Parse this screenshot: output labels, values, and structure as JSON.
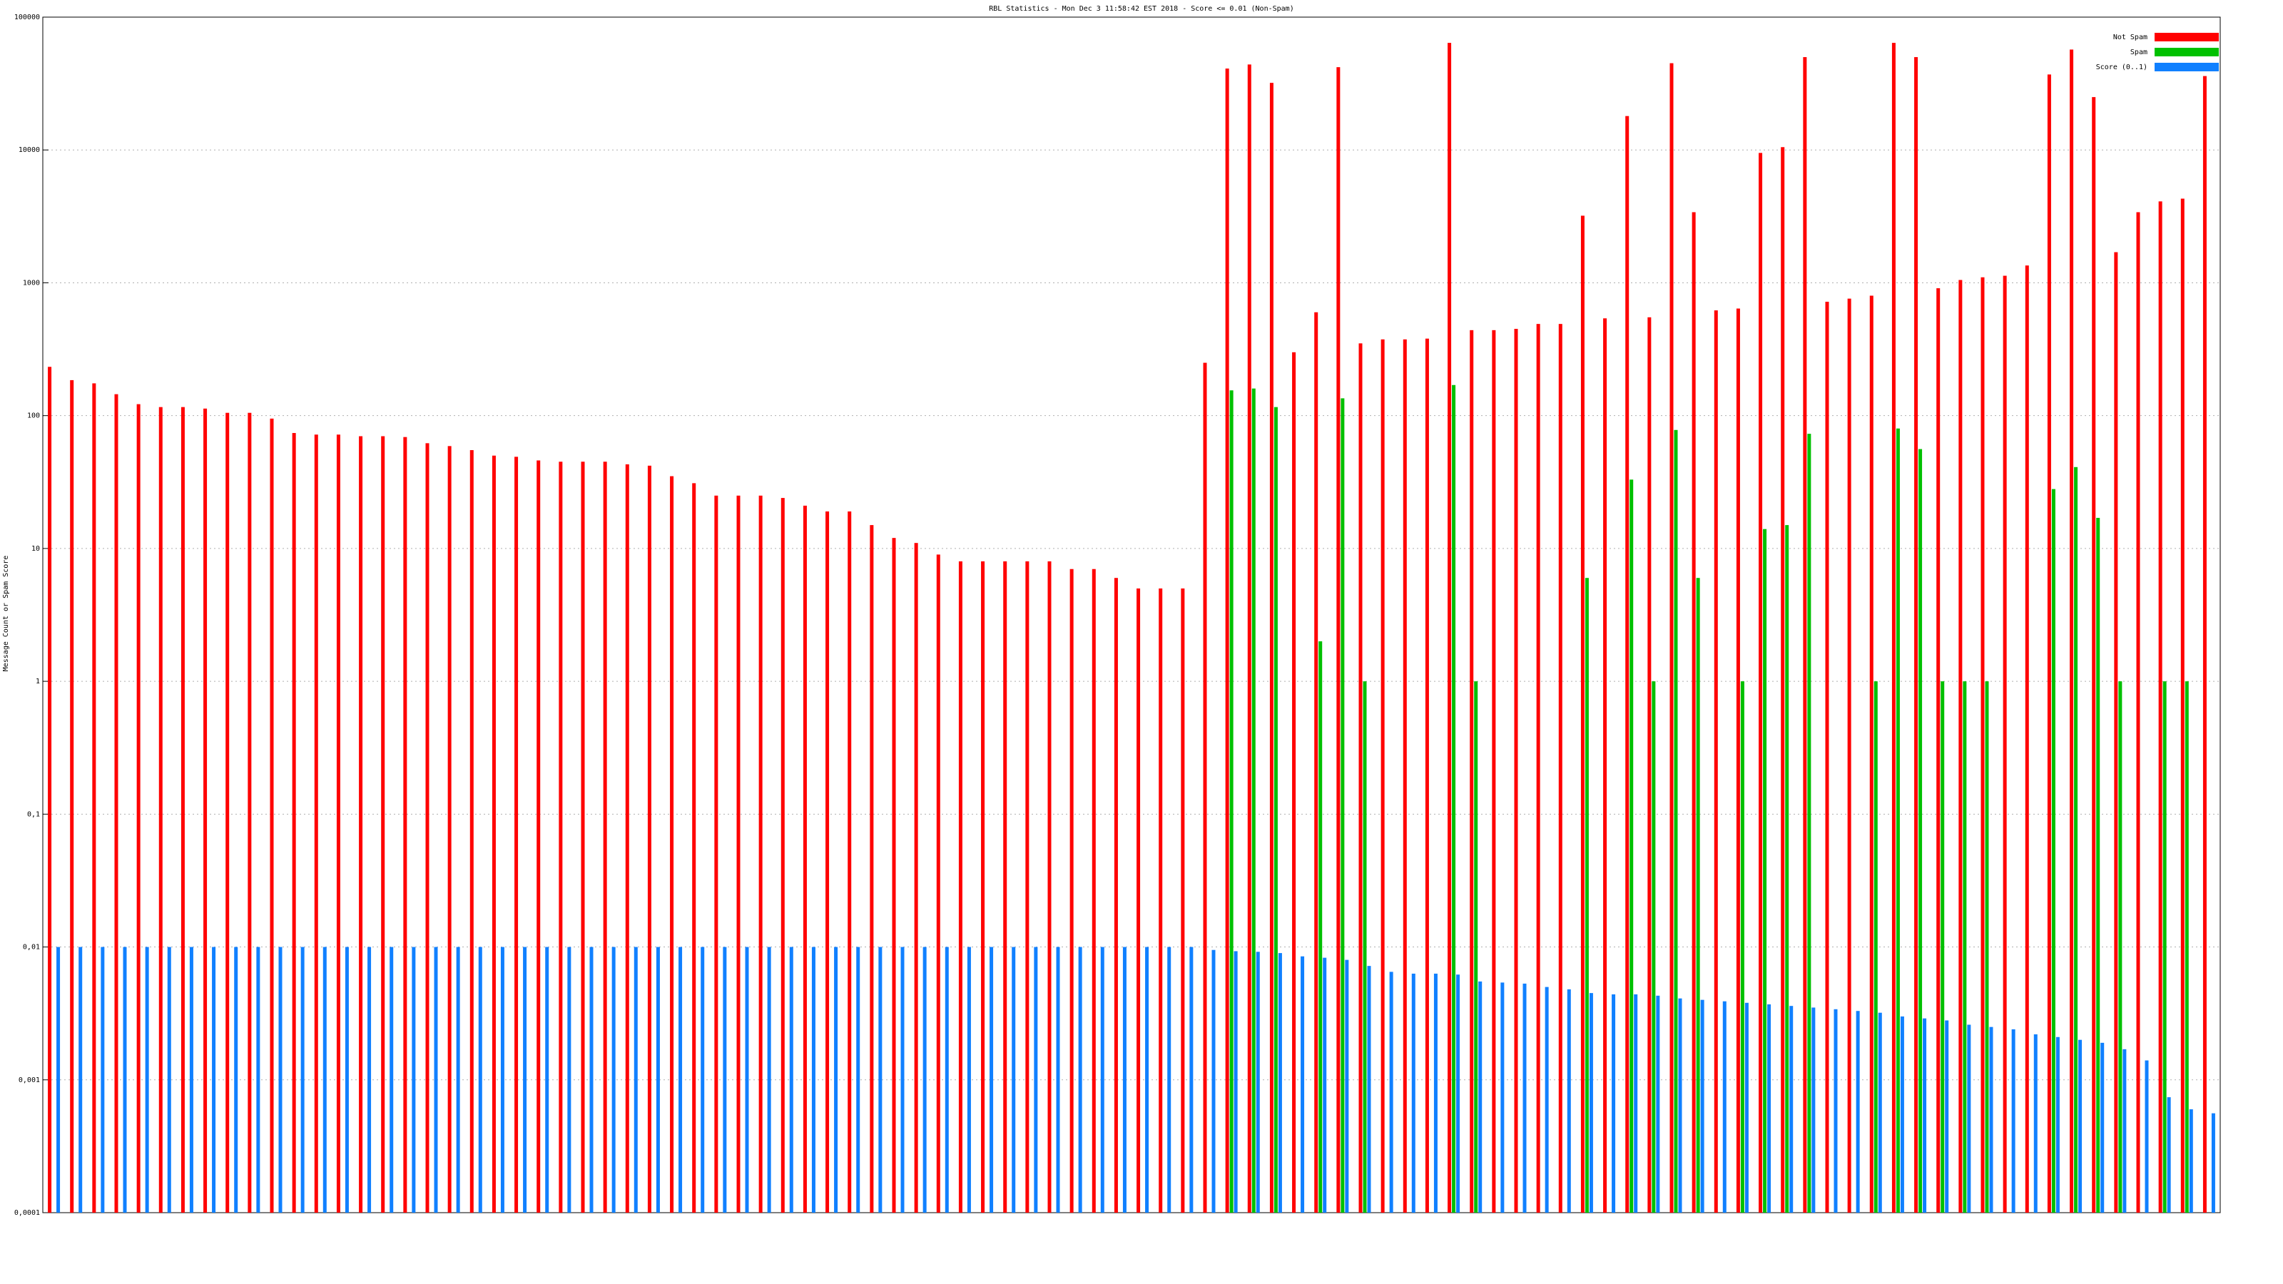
{
  "chart_data": {
    "type": "bar",
    "title": "RBL Statistics - Mon Dec  3 11:58:42 EST 2018 - Score <= 0.01 (Non-Spam)",
    "y_label": "Message Count or Spam Score",
    "log_y": true,
    "grid": true,
    "legend": "top-right",
    "ylim": [
      0.0001,
      100000
    ],
    "yticks": [
      {
        "value": 0.0001,
        "label": "0,0001"
      },
      {
        "value": 0.001,
        "label": "0,001"
      },
      {
        "value": 0.01,
        "label": "0,01"
      },
      {
        "value": 0.1,
        "label": "0,1"
      },
      1,
      10,
      100,
      1000,
      10000,
      100000
    ],
    "series": [
      {
        "name": "Not Spam",
        "color": "#ff0000",
        "values": [
          233,
          185,
          175,
          145,
          122,
          116,
          116,
          113,
          105,
          105,
          95,
          74,
          72,
          72,
          70,
          70,
          69,
          62,
          59,
          55,
          50,
          49,
          46,
          45,
          45,
          45,
          43,
          42,
          35,
          31,
          25,
          25,
          25,
          24,
          21,
          19,
          19,
          15,
          12,
          11,
          9,
          8,
          8,
          8,
          8,
          8,
          7,
          7,
          6,
          5,
          5,
          5,
          250,
          41000,
          44000,
          32000,
          300,
          600,
          42000,
          350,
          375,
          375,
          380,
          64000,
          440,
          440,
          450,
          490,
          490,
          3200,
          540,
          18000,
          550,
          45000,
          3400,
          620,
          640,
          9500,
          10500,
          50000,
          720,
          760,
          800,
          64000,
          50000,
          910,
          1050,
          1100,
          1130,
          1350,
          37000,
          57000,
          25000,
          1700,
          3400,
          4100,
          4300,
          36000
        ]
      },
      {
        "name": "Spam",
        "color": "#00c000",
        "values": [
          null,
          null,
          null,
          null,
          null,
          null,
          null,
          null,
          null,
          null,
          null,
          null,
          null,
          null,
          null,
          null,
          null,
          null,
          null,
          null,
          null,
          null,
          null,
          null,
          null,
          null,
          null,
          null,
          null,
          null,
          null,
          null,
          null,
          null,
          null,
          null,
          null,
          null,
          null,
          null,
          null,
          null,
          null,
          null,
          null,
          null,
          null,
          null,
          null,
          null,
          null,
          null,
          null,
          155,
          160,
          116,
          null,
          2,
          135,
          1,
          null,
          null,
          null,
          170,
          1,
          null,
          null,
          null,
          null,
          6,
          null,
          33,
          1,
          78,
          6,
          null,
          1,
          14,
          15,
          73,
          null,
          null,
          1,
          80,
          56,
          1,
          1,
          1,
          null,
          null,
          28,
          41,
          17,
          1,
          null,
          1,
          1,
          null
        ]
      },
      {
        "name": "Score (0..1)",
        "color": "#1080ff",
        "values": [
          0.01,
          0.01,
          0.01,
          0.01,
          0.01,
          0.01,
          0.01,
          0.01,
          0.01,
          0.01,
          0.01,
          0.01,
          0.01,
          0.01,
          0.01,
          0.01,
          0.01,
          0.01,
          0.01,
          0.01,
          0.01,
          0.01,
          0.01,
          0.01,
          0.01,
          0.01,
          0.01,
          0.01,
          0.01,
          0.01,
          0.01,
          0.01,
          0.01,
          0.01,
          0.01,
          0.01,
          0.01,
          0.01,
          0.01,
          0.01,
          0.01,
          0.01,
          0.01,
          0.01,
          0.01,
          0.01,
          0.01,
          0.01,
          0.01,
          0.01,
          0.01,
          0.01,
          0.0095,
          0.0093,
          0.0092,
          0.009,
          0.0085,
          0.0083,
          0.008,
          0.0072,
          0.0065,
          0.0063,
          0.0063,
          0.0062,
          0.0055,
          0.0054,
          0.0053,
          0.005,
          0.0048,
          0.0045,
          0.0044,
          0.0044,
          0.0043,
          0.0041,
          0.004,
          0.0039,
          0.0038,
          0.0037,
          0.0036,
          0.0035,
          0.0034,
          0.0033,
          0.0032,
          0.003,
          0.0029,
          0.0028,
          0.0026,
          0.0025,
          0.0024,
          0.0022,
          0.0021,
          0.002,
          0.0019,
          0.0017,
          0.0014,
          0.00074,
          0.0006,
          0.00056
        ]
      }
    ]
  }
}
